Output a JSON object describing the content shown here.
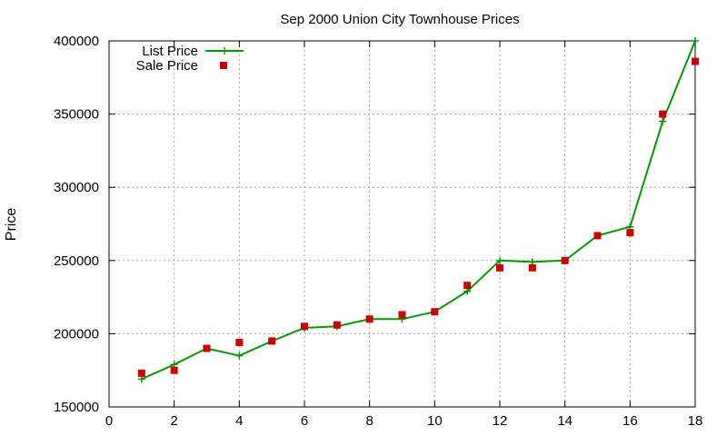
{
  "chart_data": {
    "type": "line",
    "title": "Sep 2000 Union City Townhouse Prices",
    "xlabel": "",
    "ylabel": "Price",
    "xlim": [
      0,
      18
    ],
    "ylim": [
      150000,
      400000
    ],
    "x_ticks": [
      0,
      2,
      4,
      6,
      8,
      10,
      12,
      14,
      16,
      18
    ],
    "y_ticks": [
      150000,
      200000,
      250000,
      300000,
      350000,
      400000
    ],
    "grid": true,
    "legend_position": "top-left",
    "series": [
      {
        "name": "List Price",
        "style": "line-with-plus-markers",
        "color": "#009900",
        "points": [
          [
            1,
            169000
          ],
          [
            2,
            179000
          ],
          [
            3,
            190000
          ],
          [
            4,
            185000
          ],
          [
            5,
            195000
          ],
          [
            6,
            204000
          ],
          [
            7,
            205000
          ],
          [
            8,
            210000
          ],
          [
            9,
            210000
          ],
          [
            10,
            215000
          ],
          [
            11,
            229000
          ],
          [
            12,
            250000
          ],
          [
            13,
            249000
          ],
          [
            14,
            250000
          ],
          [
            15,
            267000
          ],
          [
            16,
            273000
          ],
          [
            17,
            345000
          ],
          [
            18,
            400000
          ]
        ]
      },
      {
        "name": "Sale Price",
        "style": "square-markers",
        "color": "#cc0000",
        "points": [
          [
            1,
            173000
          ],
          [
            2,
            175000
          ],
          [
            3,
            190000
          ],
          [
            4,
            194000
          ],
          [
            5,
            195000
          ],
          [
            6,
            205000
          ],
          [
            7,
            206000
          ],
          [
            8,
            210000
          ],
          [
            9,
            213000
          ],
          [
            10,
            215000
          ],
          [
            11,
            233000
          ],
          [
            12,
            245000
          ],
          [
            13,
            245000
          ],
          [
            14,
            250000
          ],
          [
            15,
            267000
          ],
          [
            16,
            269000
          ],
          [
            17,
            350000
          ],
          [
            18,
            386000
          ]
        ]
      }
    ]
  }
}
